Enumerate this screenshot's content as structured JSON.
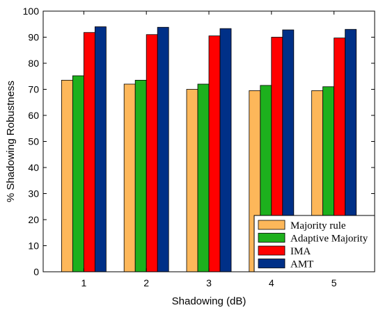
{
  "chart_data": {
    "type": "bar",
    "categories": [
      "1",
      "2",
      "3",
      "4",
      "5"
    ],
    "series": [
      {
        "name": "Majority rule",
        "color": "#FDB75A",
        "values": [
          73.5,
          72.0,
          70.0,
          69.5,
          69.5
        ]
      },
      {
        "name": "Adaptive Majority",
        "color": "#1DB01D",
        "values": [
          75.2,
          73.5,
          72.0,
          71.5,
          71.0
        ]
      },
      {
        "name": "IMA",
        "color": "#FF0000",
        "values": [
          91.8,
          91.0,
          90.5,
          90.0,
          89.7
        ]
      },
      {
        "name": "AMT",
        "color": "#003087",
        "values": [
          94.0,
          93.8,
          93.3,
          92.8,
          93.0
        ]
      }
    ],
    "xlabel": "Shadowing (dB)",
    "ylabel": "% Shadowing Robustness",
    "ylim": [
      0,
      100
    ],
    "yticks": [
      "0",
      "10",
      "20",
      "30",
      "40",
      "50",
      "60",
      "70",
      "80",
      "90",
      "100"
    ],
    "grid": false,
    "legend_position": "bottom-right"
  }
}
